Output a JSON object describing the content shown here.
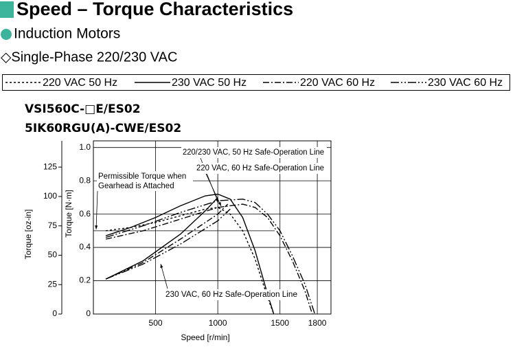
{
  "header": {
    "title": "Speed – Torque Characteristics",
    "subtitle": "Induction Motors",
    "phase": "◇Single-Phase 220/230 VAC"
  },
  "chart_data": {
    "type": "line",
    "models": [
      "VSI560C-□E/ES02",
      "5IK60RGU(A)-CWE/ES02"
    ],
    "xlabel": "Speed [r/min]",
    "ylabel": "Torque [N·m]",
    "y2label": "Torque [oz-in]",
    "xlim": [
      0,
      1910
    ],
    "xticks": [
      500,
      1000,
      1500,
      1800
    ],
    "ylim": [
      0,
      1.04
    ],
    "yticks": [
      0,
      0.2,
      0.4,
      0.6,
      0.8,
      {
        "value": 1,
        "label": "1.0"
      }
    ],
    "y2lim": [
      0,
      147.3
    ],
    "y2ticks": [
      0,
      25,
      50,
      75,
      100,
      125
    ],
    "grid": true,
    "series": [
      {
        "name": "220 VAC 50 Hz",
        "color": "#000000",
        "dash": "3,3",
        "x": [
          100,
          300,
          500,
          700,
          900,
          1000,
          1100,
          1200,
          1300,
          1400,
          1450
        ],
        "values": [
          0.5,
          0.52,
          0.55,
          0.59,
          0.63,
          0.64,
          0.6,
          0.5,
          0.33,
          0.1,
          0
        ]
      },
      {
        "name": "230 VAC 50 Hz",
        "color": "#000000",
        "dash": "none",
        "x": [
          100,
          300,
          500,
          700,
          900,
          1000,
          1100,
          1200,
          1300,
          1400,
          1450
        ],
        "values": [
          0.47,
          0.52,
          0.58,
          0.65,
          0.71,
          0.72,
          0.69,
          0.58,
          0.38,
          0.12,
          0
        ]
      },
      {
        "name": "220 VAC 60 Hz",
        "color": "#000000",
        "dash": "9,3,2,3",
        "x": [
          100,
          400,
          700,
          1000,
          1200,
          1300,
          1400,
          1500,
          1600,
          1700,
          1760
        ],
        "values": [
          0.45,
          0.5,
          0.57,
          0.64,
          0.66,
          0.64,
          0.58,
          0.47,
          0.32,
          0.14,
          0
        ]
      },
      {
        "name": "230 VAC 60 Hz",
        "color": "#000000",
        "dash": "12,3,2,3,2,3",
        "x": [
          100,
          400,
          700,
          1000,
          1200,
          1300,
          1400,
          1500,
          1600,
          1700,
          1780
        ],
        "values": [
          0.46,
          0.53,
          0.61,
          0.68,
          0.69,
          0.67,
          0.6,
          0.5,
          0.35,
          0.18,
          0
        ]
      }
    ],
    "safe_operation_lines": [
      {
        "name": "220/230 VAC, 50 Hz Safe-Operation Line",
        "dash": "none",
        "x": [
          100,
          400,
          700,
          900,
          1000
        ],
        "values": [
          0.21,
          0.32,
          0.48,
          0.62,
          0.7
        ]
      },
      {
        "name": "220 VAC, 60 Hz Safe-Operation Line",
        "dash": "9,3,2,3",
        "x": [
          100,
          400,
          700,
          1000,
          1080
        ],
        "values": [
          0.21,
          0.31,
          0.45,
          0.6,
          0.66
        ]
      },
      {
        "name": "230 VAC, 60 Hz Safe-Operation Line",
        "dash": "12,3,2,3,2,3",
        "x": [
          100,
          400,
          700,
          1000,
          1100
        ],
        "values": [
          0.21,
          0.3,
          0.42,
          0.56,
          0.63
        ]
      }
    ],
    "permissible_torque": {
      "lines": [
        "Permissible Torque when",
        "Gearhead is Attached"
      ],
      "value": 0.5
    }
  }
}
